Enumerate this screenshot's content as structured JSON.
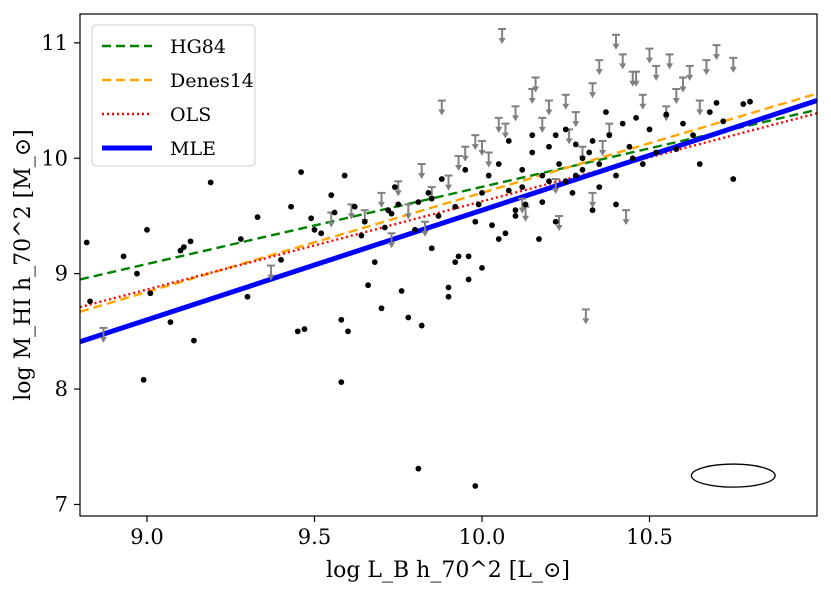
{
  "chart_data": {
    "type": "scatter",
    "title": "",
    "xlabel": "log L_B h_70^2 [L_⊙]",
    "ylabel": "log M_HI h_70^2 [M_⊙]",
    "xlim": [
      8.8,
      11.0
    ],
    "ylim": [
      6.9,
      11.25
    ],
    "x_ticks": [
      9.0,
      9.5,
      10.0,
      10.5
    ],
    "x_tick_labels": [
      "9.0",
      "9.5",
      "10.0",
      "10.5"
    ],
    "y_ticks": [
      7,
      8,
      9,
      10,
      11
    ],
    "y_tick_labels": [
      "7",
      "8",
      "9",
      "10",
      "11"
    ],
    "grid": false,
    "legend_position": "top-left",
    "fits": [
      {
        "name": "HG84",
        "color": "#008000",
        "style": "dashed",
        "x": [
          8.8,
          11.0
        ],
        "y": [
          8.95,
          10.42
        ]
      },
      {
        "name": "Denes14",
        "color": "#ffa500",
        "style": "dashed",
        "x": [
          8.8,
          11.0
        ],
        "y": [
          8.67,
          10.56
        ]
      },
      {
        "name": "OLS",
        "color": "#ff0000",
        "style": "dotted",
        "x": [
          8.8,
          11.0
        ],
        "y": [
          8.71,
          10.39
        ]
      },
      {
        "name": "MLE",
        "color": "#0000ff",
        "style": "solid",
        "x": [
          8.8,
          11.0
        ],
        "y": [
          8.41,
          10.5
        ]
      }
    ],
    "detections": {
      "color": "#000000",
      "x": [
        8.82,
        8.83,
        8.93,
        8.97,
        8.99,
        9.0,
        9.01,
        9.07,
        9.1,
        9.11,
        9.13,
        9.14,
        9.19,
        9.28,
        9.3,
        9.33,
        9.4,
        9.43,
        9.45,
        9.46,
        9.47,
        9.49,
        9.5,
        9.52,
        9.55,
        9.56,
        9.58,
        9.59,
        9.6,
        9.62,
        9.64,
        9.66,
        9.68,
        9.7,
        9.71,
        9.72,
        9.73,
        9.74,
        9.76,
        9.78,
        9.8,
        9.81,
        9.82,
        9.84,
        9.85,
        9.87,
        9.88,
        9.9,
        9.92,
        9.93,
        9.95,
        9.96,
        9.98,
        9.99,
        10.0,
        10.02,
        10.03,
        10.05,
        10.07,
        10.08,
        10.1,
        10.12,
        10.13,
        10.15,
        10.17,
        10.18,
        10.2,
        10.22,
        10.23,
        10.25,
        10.27,
        10.28,
        10.3,
        10.32,
        10.33,
        10.35,
        10.37,
        10.38,
        10.4,
        10.42,
        10.44,
        10.46,
        10.48,
        10.5,
        10.52,
        10.55,
        10.58,
        10.6,
        10.63,
        10.65,
        10.68,
        10.7,
        10.72,
        10.75,
        10.78,
        10.8,
        9.96,
        10.1,
        10.2,
        10.3,
        10.05,
        10.15,
        10.25,
        10.35,
        10.12,
        10.22,
        10.4,
        9.75,
        9.85,
        9.65,
        10.45,
        10.0,
        9.9,
        10.28,
        10.18,
        10.08,
        9.92,
        10.33,
        9.58,
        9.81,
        9.98
      ],
      "y": [
        9.27,
        8.76,
        9.15,
        9.0,
        8.08,
        9.38,
        8.83,
        8.58,
        9.2,
        9.23,
        9.28,
        8.42,
        9.79,
        9.3,
        8.8,
        9.49,
        9.12,
        9.58,
        8.5,
        9.88,
        8.52,
        9.48,
        9.38,
        9.35,
        9.68,
        9.53,
        8.6,
        9.85,
        8.5,
        9.58,
        9.33,
        8.9,
        9.1,
        8.7,
        9.4,
        9.55,
        9.52,
        9.75,
        8.85,
        8.62,
        9.38,
        9.62,
        8.55,
        9.7,
        9.22,
        9.5,
        9.82,
        8.8,
        9.58,
        9.15,
        9.9,
        8.95,
        9.45,
        9.6,
        9.7,
        9.85,
        9.42,
        9.95,
        9.35,
        10.15,
        9.55,
        9.75,
        9.6,
        10.05,
        9.3,
        9.85,
        10.1,
        9.45,
        9.95,
        10.25,
        9.7,
        9.85,
        9.9,
        10.05,
        9.55,
        9.75,
        10.4,
        10.2,
        9.6,
        10.3,
        10.1,
        10.35,
        9.95,
        10.25,
        10.05,
        10.38,
        10.08,
        10.3,
        10.2,
        9.95,
        10.4,
        10.48,
        10.32,
        9.82,
        10.47,
        10.49,
        9.15,
        9.5,
        9.8,
        10.0,
        9.3,
        10.2,
        9.8,
        9.95,
        9.9,
        10.2,
        9.85,
        9.6,
        9.65,
        9.45,
        10.0,
        9.05,
        8.88,
        10.12,
        9.62,
        9.72,
        9.1,
        10.15,
        8.06,
        7.31,
        7.16
      ]
    },
    "upper_limits": {
      "color": "#808080",
      "x": [
        8.87,
        9.37,
        9.55,
        9.61,
        9.65,
        9.7,
        9.75,
        9.78,
        9.82,
        9.85,
        9.88,
        9.9,
        9.93,
        9.95,
        9.98,
        10.0,
        10.02,
        10.05,
        10.07,
        10.1,
        10.12,
        10.15,
        10.18,
        10.2,
        10.22,
        10.25,
        10.28,
        10.3,
        10.33,
        10.35,
        10.38,
        10.4,
        10.42,
        10.45,
        10.48,
        10.5,
        10.52,
        10.55,
        10.58,
        10.6,
        10.62,
        10.65,
        10.67,
        10.7,
        10.75,
        10.06,
        10.16,
        10.26,
        10.36,
        10.46,
        10.56,
        9.73,
        9.83,
        10.13,
        10.23,
        10.33,
        10.43,
        10.31
      ],
      "y": [
        8.53,
        9.07,
        9.53,
        9.6,
        9.55,
        9.7,
        9.8,
        9.6,
        9.95,
        9.75,
        10.5,
        9.85,
        10.02,
        10.1,
        10.2,
        10.15,
        10.05,
        10.35,
        10.3,
        10.45,
        9.65,
        10.6,
        10.35,
        10.5,
        9.82,
        10.55,
        10.4,
        10.1,
        10.65,
        10.85,
        10.3,
        11.07,
        10.9,
        10.75,
        10.55,
        10.95,
        10.8,
        10.45,
        10.6,
        10.7,
        10.8,
        10.5,
        10.85,
        10.98,
        10.87,
        11.12,
        10.7,
        10.25,
        10.15,
        10.75,
        10.9,
        9.35,
        9.45,
        9.58,
        9.5,
        9.7,
        9.55,
        8.69
      ]
    },
    "error_ellipse": {
      "center_x": 10.75,
      "center_y": 7.25,
      "width": 0.25,
      "height": 0.2
    }
  }
}
